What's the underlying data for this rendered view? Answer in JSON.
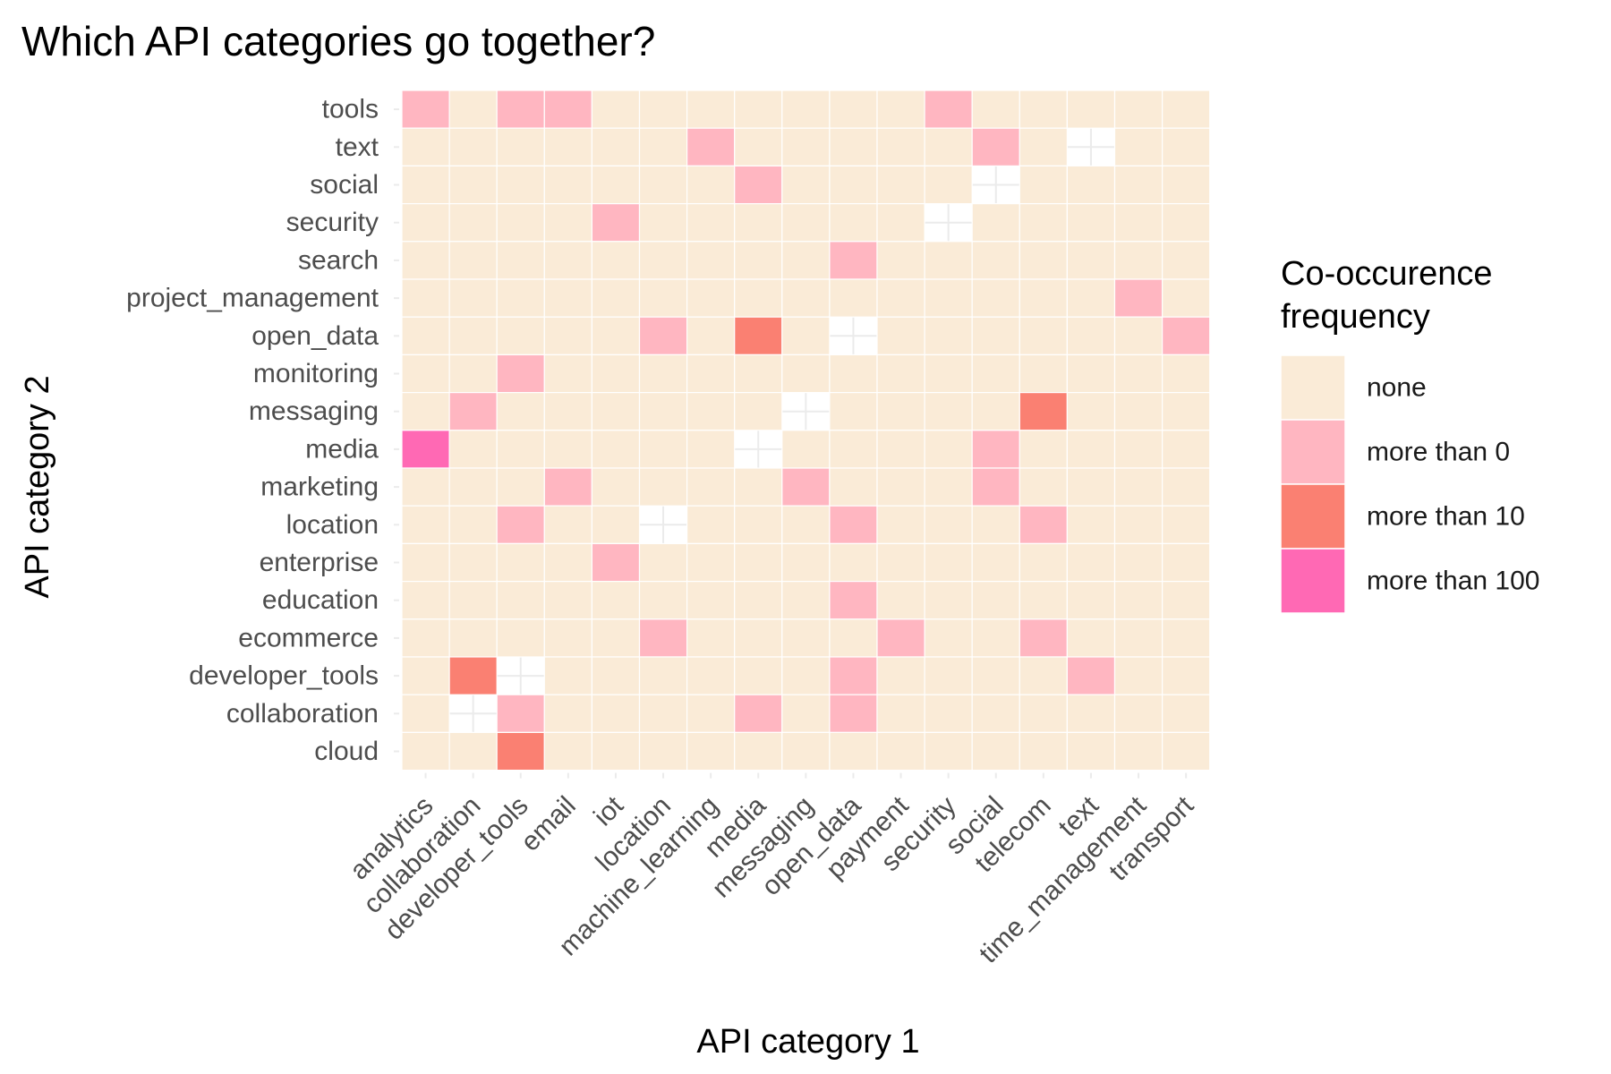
{
  "chart_data": {
    "type": "heatmap",
    "title": "Which API categories go together?",
    "xlabel": "API category 1",
    "ylabel": "API category 2",
    "x_categories": [
      "analytics",
      "collaboration",
      "developer_tools",
      "email",
      "iot",
      "location",
      "machine_learning",
      "media",
      "messaging",
      "open_data",
      "payment",
      "security",
      "social",
      "telecom",
      "text",
      "time_management",
      "transport"
    ],
    "y_categories": [
      "tools",
      "text",
      "social",
      "security",
      "search",
      "project_management",
      "open_data",
      "monitoring",
      "messaging",
      "media",
      "marketing",
      "location",
      "enterprise",
      "education",
      "ecommerce",
      "developer_tools",
      "collaboration",
      "cloud"
    ],
    "levels": [
      "none",
      "more than 0",
      "more than 10",
      "more than 100"
    ],
    "level_colors": [
      "#FAEBD7",
      "#FFB6C1",
      "#FA8072",
      "#FF69B4"
    ],
    "grid_color": "#EBEBEB",
    "cells": [
      {
        "x": "analytics",
        "y": "tools",
        "level": "more than 0"
      },
      {
        "x": "developer_tools",
        "y": "tools",
        "level": "more than 0"
      },
      {
        "x": "email",
        "y": "tools",
        "level": "more than 0"
      },
      {
        "x": "security",
        "y": "tools",
        "level": "more than 0"
      },
      {
        "x": "machine_learning",
        "y": "text",
        "level": "more than 0"
      },
      {
        "x": "social",
        "y": "text",
        "level": "more than 0"
      },
      {
        "x": "media",
        "y": "social",
        "level": "more than 0"
      },
      {
        "x": "iot",
        "y": "security",
        "level": "more than 0"
      },
      {
        "x": "open_data",
        "y": "search",
        "level": "more than 0"
      },
      {
        "x": "time_management",
        "y": "project_management",
        "level": "more than 0"
      },
      {
        "x": "location",
        "y": "open_data",
        "level": "more than 0"
      },
      {
        "x": "media",
        "y": "open_data",
        "level": "more than 10"
      },
      {
        "x": "transport",
        "y": "open_data",
        "level": "more than 0"
      },
      {
        "x": "developer_tools",
        "y": "monitoring",
        "level": "more than 0"
      },
      {
        "x": "collaboration",
        "y": "messaging",
        "level": "more than 0"
      },
      {
        "x": "telecom",
        "y": "messaging",
        "level": "more than 10"
      },
      {
        "x": "analytics",
        "y": "media",
        "level": "more than 100"
      },
      {
        "x": "social",
        "y": "media",
        "level": "more than 0"
      },
      {
        "x": "email",
        "y": "marketing",
        "level": "more than 0"
      },
      {
        "x": "messaging",
        "y": "marketing",
        "level": "more than 0"
      },
      {
        "x": "social",
        "y": "marketing",
        "level": "more than 0"
      },
      {
        "x": "developer_tools",
        "y": "location",
        "level": "more than 0"
      },
      {
        "x": "open_data",
        "y": "location",
        "level": "more than 0"
      },
      {
        "x": "telecom",
        "y": "location",
        "level": "more than 0"
      },
      {
        "x": "iot",
        "y": "enterprise",
        "level": "more than 0"
      },
      {
        "x": "open_data",
        "y": "education",
        "level": "more than 0"
      },
      {
        "x": "location",
        "y": "ecommerce",
        "level": "more than 0"
      },
      {
        "x": "payment",
        "y": "ecommerce",
        "level": "more than 0"
      },
      {
        "x": "telecom",
        "y": "ecommerce",
        "level": "more than 0"
      },
      {
        "x": "collaboration",
        "y": "developer_tools",
        "level": "more than 10"
      },
      {
        "x": "open_data",
        "y": "developer_tools",
        "level": "more than 0"
      },
      {
        "x": "text",
        "y": "developer_tools",
        "level": "more than 0"
      },
      {
        "x": "developer_tools",
        "y": "collaboration",
        "level": "more than 0"
      },
      {
        "x": "media",
        "y": "collaboration",
        "level": "more than 0"
      },
      {
        "x": "open_data",
        "y": "collaboration",
        "level": "more than 0"
      },
      {
        "x": "developer_tools",
        "y": "cloud",
        "level": "more than 10"
      }
    ],
    "empty_cells": [
      {
        "x": "text",
        "y": "text"
      },
      {
        "x": "social",
        "y": "social"
      },
      {
        "x": "security",
        "y": "security"
      },
      {
        "x": "open_data",
        "y": "open_data"
      },
      {
        "x": "messaging",
        "y": "messaging"
      },
      {
        "x": "media",
        "y": "media"
      },
      {
        "x": "location",
        "y": "location"
      },
      {
        "x": "developer_tools",
        "y": "developer_tools"
      },
      {
        "x": "collaboration",
        "y": "collaboration"
      }
    ],
    "legend": {
      "title": [
        "Co-occurence",
        "frequency"
      ],
      "placement": "right"
    }
  }
}
